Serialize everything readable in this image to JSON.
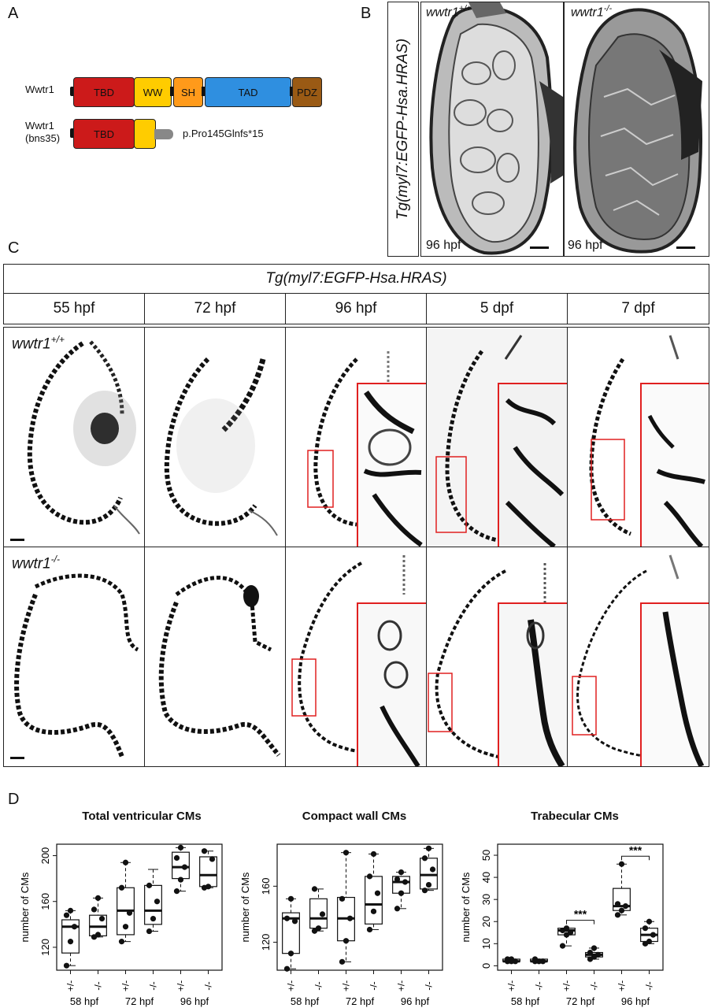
{
  "panel_labels": {
    "a": "A",
    "b": "B",
    "c": "C",
    "d": "D"
  },
  "panel_a": {
    "wt_label": "Wwtr1",
    "mut_label_line1": "Wwtr1",
    "mut_label_line2": "(bns35)",
    "domains": {
      "tbd": "TBD",
      "ww": "WW",
      "sh": "SH",
      "tad": "TAD",
      "pdz": "PDZ"
    },
    "mutation": "p.Pro145Glnfs*15",
    "colors": {
      "tbd": "#cc1a1a",
      "ww": "#ffcc00",
      "sh": "#ff9a1a",
      "tad": "#2f8fe0",
      "pdz": "#9a5a14",
      "tail": "#888888"
    }
  },
  "panel_b": {
    "side_label": "Tg(myl7:EGFP-Hsa.HRAS)",
    "wt_genotype": "wwtr1",
    "wt_sup": "+/+",
    "mut_genotype": "wwtr1",
    "mut_sup": "-/-",
    "stage_left": "96 hpf",
    "stage_right": "96 hpf"
  },
  "panel_c": {
    "header": "Tg(myl7:EGFP-Hsa.HRAS)",
    "stages": [
      "55 hpf",
      "72 hpf",
      "96 hpf",
      "5 dpf",
      "7 dpf"
    ],
    "row1_genotype": "wwtr1",
    "row1_sup": "+/+",
    "row2_genotype": "wwtr1",
    "row2_sup": "-/-",
    "inset_color": "#e02020"
  },
  "panel_d": {
    "ylabel": "number of CMs",
    "groups": [
      "58 hpf",
      "72 hpf",
      "96 hpf"
    ],
    "genotypes": [
      "+/-",
      "-/-",
      "+/-",
      "-/-",
      "+/-",
      "-/-"
    ],
    "significance": "***"
  },
  "chart_data": [
    {
      "type": "box",
      "title": "Total ventricular CMs",
      "ylabel": "number of CMs",
      "yticks": [
        120,
        160,
        200
      ],
      "ylim": [
        100,
        210
      ],
      "categories": [
        "+/- 58 hpf",
        "-/- 58 hpf",
        "+/- 72 hpf",
        "-/- 72 hpf",
        "+/- 96 hpf",
        "-/- 96 hpf"
      ],
      "boxes": [
        {
          "min": 104,
          "q1": 115,
          "median": 138,
          "q3": 144,
          "max": 152,
          "points": [
            104,
            125,
            138,
            148,
            152
          ]
        },
        {
          "min": 129,
          "q1": 130,
          "median": 138,
          "q3": 148,
          "max": 163,
          "points": [
            129,
            131,
            145,
            153,
            163
          ]
        },
        {
          "min": 125,
          "q1": 131,
          "median": 152,
          "q3": 172,
          "max": 194,
          "points": [
            125,
            138,
            150,
            172,
            194
          ]
        },
        {
          "min": 134,
          "q1": 140,
          "median": 152,
          "q3": 174,
          "max": 188,
          "points": [
            134,
            145,
            160,
            174
          ]
        },
        {
          "min": 169,
          "q1": 180,
          "median": 190,
          "q3": 203,
          "max": 207,
          "points": [
            169,
            179,
            190,
            198,
            207
          ]
        },
        {
          "min": 172,
          "q1": 173,
          "median": 183,
          "q3": 199,
          "max": 204,
          "points": [
            172,
            173,
            197,
            204
          ]
        }
      ]
    },
    {
      "type": "box",
      "title": "Compact wall CMs",
      "ylabel": "number of CMs",
      "yticks": [
        120,
        160
      ],
      "ylim": [
        100,
        190
      ],
      "categories": [
        "+/- 58 hpf",
        "-/- 58 hpf",
        "+/- 72 hpf",
        "-/- 72 hpf",
        "+/- 96 hpf",
        "-/- 96 hpf"
      ],
      "boxes": [
        {
          "min": 101,
          "q1": 112,
          "median": 137,
          "q3": 141,
          "max": 151,
          "points": [
            101,
            112,
            135,
            137,
            151
          ]
        },
        {
          "min": 128,
          "q1": 130,
          "median": 137,
          "q3": 151,
          "max": 158,
          "points": [
            128,
            130,
            140,
            158
          ]
        },
        {
          "min": 106,
          "q1": 121,
          "median": 137,
          "q3": 152,
          "max": 184,
          "points": [
            106,
            121,
            137,
            151,
            184
          ]
        },
        {
          "min": 129,
          "q1": 133,
          "median": 147,
          "q3": 167,
          "max": 183,
          "points": [
            129,
            142,
            155,
            167,
            183
          ]
        },
        {
          "min": 144,
          "q1": 155,
          "median": 163,
          "q3": 167,
          "max": 170,
          "points": [
            144,
            155,
            163,
            165,
            170
          ]
        },
        {
          "min": 157,
          "q1": 158,
          "median": 168,
          "q3": 180,
          "max": 187,
          "points": [
            157,
            161,
            172,
            180,
            187
          ]
        }
      ]
    },
    {
      "type": "box",
      "title": "Trabecular CMs",
      "ylabel": "number of CMs",
      "yticks": [
        0,
        10,
        20,
        30,
        40,
        50
      ],
      "ylim": [
        -2,
        55
      ],
      "categories": [
        "+/- 58 hpf",
        "-/- 58 hpf",
        "+/- 72 hpf",
        "-/- 72 hpf",
        "+/- 96 hpf",
        "-/- 96 hpf"
      ],
      "boxes": [
        {
          "min": 2,
          "q1": 2,
          "median": 2,
          "q3": 3,
          "max": 3,
          "points": [
            2,
            2,
            2,
            3,
            3
          ]
        },
        {
          "min": 2,
          "q1": 2,
          "median": 2,
          "q3": 3,
          "max": 3,
          "points": [
            2,
            2,
            2,
            3
          ]
        },
        {
          "min": 9,
          "q1": 14,
          "median": 16,
          "q3": 17,
          "max": 17,
          "points": [
            9,
            14,
            15,
            16,
            17
          ]
        },
        {
          "min": 3,
          "q1": 4,
          "median": 5,
          "q3": 6,
          "max": 8,
          "points": [
            3,
            4,
            5,
            6,
            8
          ]
        },
        {
          "min": 23,
          "q1": 25,
          "median": 27,
          "q3": 35,
          "max": 46,
          "points": [
            23,
            25,
            27,
            28,
            46
          ]
        },
        {
          "min": 10,
          "q1": 11,
          "median": 14,
          "q3": 17,
          "max": 20,
          "points": [
            10,
            11,
            14,
            17,
            20
          ]
        }
      ],
      "significance": [
        {
          "between": [
            2,
            3
          ],
          "label": "***"
        },
        {
          "between": [
            4,
            5
          ],
          "label": "***"
        }
      ]
    }
  ]
}
